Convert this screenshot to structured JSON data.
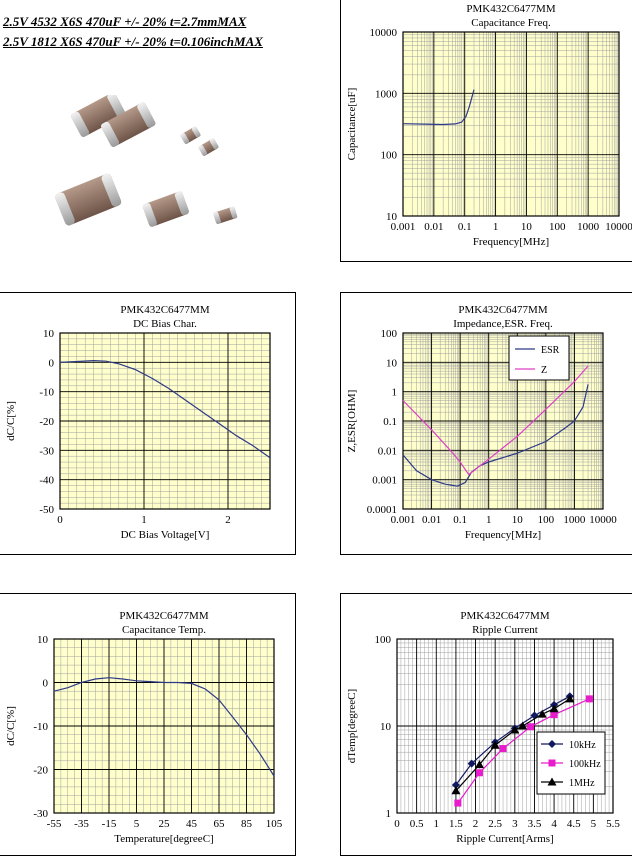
{
  "header": {
    "line1": "2.5V 4532 X6S 470uF +/- 20% t=2.7mmMAX",
    "line2": "2.5V 1812 X6S 470uF +/- 20% t=0.106inchMAX"
  },
  "chart_data": [
    {
      "id": "cap-freq",
      "type": "line",
      "title": "PMK432C6477MM",
      "subtitle": "Capacitance Freq.",
      "xlabel": "Frequency[MHz]",
      "ylabel": "Capacitance[uF]",
      "xscale": "log",
      "yscale": "log",
      "xlim": [
        0.001,
        10000
      ],
      "ylim": [
        10,
        10000
      ],
      "xticks": [
        "0.001",
        "0.01",
        "0.1",
        "1",
        "10",
        "100",
        "1000",
        "10000"
      ],
      "yticks": [
        "10",
        "100",
        "1000",
        "10000"
      ],
      "grid": true,
      "series": [
        {
          "color": "#2e3a87",
          "points": [
            [
              0.001,
              320
            ],
            [
              0.005,
              315
            ],
            [
              0.02,
              310
            ],
            [
              0.05,
              318
            ],
            [
              0.08,
              340
            ],
            [
              0.11,
              420
            ],
            [
              0.14,
              600
            ],
            [
              0.17,
              850
            ],
            [
              0.2,
              1150
            ]
          ]
        }
      ]
    },
    {
      "id": "dc-bias",
      "type": "line",
      "title": "PMK432C6477MM",
      "subtitle": "DC Bias Char.",
      "xlabel": "DC Bias Voltage[V]",
      "ylabel": "dC/C[%]",
      "xscale": "linear",
      "yscale": "linear",
      "xlim": [
        0,
        2.5
      ],
      "ylim": [
        -50,
        10
      ],
      "xticks": [
        "0",
        "1",
        "2"
      ],
      "yticks": [
        "10",
        "0",
        "-10",
        "-20",
        "-30",
        "-40",
        "-50"
      ],
      "grid": true,
      "series": [
        {
          "color": "#2e3a87",
          "points": [
            [
              0,
              0
            ],
            [
              0.2,
              0.3
            ],
            [
              0.4,
              0.6
            ],
            [
              0.55,
              0.4
            ],
            [
              0.7,
              -0.5
            ],
            [
              0.9,
              -2.5
            ],
            [
              1.1,
              -5.5
            ],
            [
              1.3,
              -9
            ],
            [
              1.5,
              -13
            ],
            [
              1.7,
              -17
            ],
            [
              1.9,
              -21
            ],
            [
              2.1,
              -25
            ],
            [
              2.3,
              -28.5
            ],
            [
              2.5,
              -32.5
            ]
          ]
        }
      ]
    },
    {
      "id": "impedance",
      "type": "line",
      "title": "PMK432C6477MM",
      "subtitle": "Impedance,ESR. Freq.",
      "xlabel": "Frequency[MHz]",
      "ylabel": "Z,ESR[OHM]",
      "xscale": "log",
      "yscale": "log",
      "xlim": [
        0.001,
        10000
      ],
      "ylim": [
        0.0001,
        100
      ],
      "xticks": [
        "0.001",
        "0.01",
        "0.1",
        "1",
        "10",
        "100",
        "1000",
        "10000"
      ],
      "yticks": [
        "100",
        "10",
        "1",
        "0.1",
        "0.01",
        "0.001",
        "0.0001"
      ],
      "grid": true,
      "legend_position": "top-right",
      "series": [
        {
          "name": "ESR",
          "color": "#2e3a87",
          "points": [
            [
              0.001,
              0.007
            ],
            [
              0.003,
              0.002
            ],
            [
              0.01,
              0.001
            ],
            [
              0.03,
              0.0007
            ],
            [
              0.08,
              0.0006
            ],
            [
              0.15,
              0.0008
            ],
            [
              0.25,
              0.0018
            ],
            [
              0.5,
              0.003
            ],
            [
              1,
              0.004
            ],
            [
              10,
              0.008
            ],
            [
              100,
              0.02
            ],
            [
              500,
              0.06
            ],
            [
              1000,
              0.1
            ],
            [
              2000,
              0.3
            ],
            [
              3000,
              1.8
            ]
          ]
        },
        {
          "name": "Z",
          "color": "#e040c8",
          "points": [
            [
              0.001,
              0.5
            ],
            [
              0.01,
              0.05
            ],
            [
              0.05,
              0.009
            ],
            [
              0.1,
              0.004
            ],
            [
              0.2,
              0.0015
            ],
            [
              0.3,
              0.002
            ],
            [
              0.5,
              0.003
            ],
            [
              1,
              0.005
            ],
            [
              10,
              0.03
            ],
            [
              100,
              0.25
            ],
            [
              1000,
              2.2
            ],
            [
              3000,
              7.5
            ]
          ]
        }
      ]
    },
    {
      "id": "cap-temp",
      "type": "line",
      "title": "PMK432C6477MM",
      "subtitle": "Capacitance Temp.",
      "xlabel": "Temperature[degreeC]",
      "ylabel": "dC/C[%]",
      "xscale": "linear",
      "yscale": "linear",
      "xlim": [
        -55,
        105
      ],
      "ylim": [
        -30,
        10
      ],
      "xticks": [
        "-55",
        "-35",
        "-15",
        "5",
        "25",
        "45",
        "65",
        "85",
        "105"
      ],
      "yticks": [
        "10",
        "0",
        "-10",
        "-20",
        "-30"
      ],
      "grid": true,
      "series": [
        {
          "color": "#2e3a87",
          "points": [
            [
              -55,
              -2
            ],
            [
              -45,
              -1.2
            ],
            [
              -35,
              0
            ],
            [
              -25,
              0.8
            ],
            [
              -15,
              1.1
            ],
            [
              -5,
              0.8
            ],
            [
              5,
              0.4
            ],
            [
              15,
              0.2
            ],
            [
              25,
              0
            ],
            [
              35,
              0
            ],
            [
              45,
              -0.2
            ],
            [
              55,
              -1.5
            ],
            [
              65,
              -4
            ],
            [
              75,
              -8
            ],
            [
              85,
              -12
            ],
            [
              95,
              -16.5
            ],
            [
              105,
              -21.5
            ]
          ]
        }
      ]
    },
    {
      "id": "ripple",
      "type": "line",
      "title": "PMK432C6477MM",
      "subtitle": "Ripple Current",
      "xlabel": "Ripple Current[Arms]",
      "ylabel": "dTemp[degreeC]",
      "xscale": "linear",
      "yscale": "log",
      "xlim": [
        0,
        5.5
      ],
      "ylim": [
        1,
        100
      ],
      "xticks": [
        "0",
        "0.5",
        "1",
        "1.5",
        "2",
        "2.5",
        "3",
        "3.5",
        "4",
        "4.5",
        "5",
        "5.5"
      ],
      "yticks": [
        "100",
        "10",
        "1"
      ],
      "grid": true,
      "legend_position": "bottom-right",
      "series": [
        {
          "name": "10kHz",
          "color": "#101860",
          "marker": "diamond",
          "points": [
            [
              1.5,
              2.1
            ],
            [
              1.9,
              3.7
            ],
            [
              2.5,
              6.5
            ],
            [
              3,
              9.4
            ],
            [
              3.5,
              13.2
            ],
            [
              4,
              17.5
            ],
            [
              4.4,
              22
            ]
          ]
        },
        {
          "name": "100kHz",
          "color": "#e81ccc",
          "marker": "square",
          "points": [
            [
              1.55,
              1.3
            ],
            [
              2.1,
              2.9
            ],
            [
              2.7,
              5.5
            ],
            [
              3.4,
              9.8
            ],
            [
              4,
              13.5
            ],
            [
              4.9,
              20.5
            ]
          ]
        },
        {
          "name": "1MHz",
          "color": "#000000",
          "marker": "triangle",
          "points": [
            [
              1.5,
              1.8
            ],
            [
              2.1,
              3.6
            ],
            [
              2.5,
              6
            ],
            [
              3,
              9
            ],
            [
              3.2,
              10
            ],
            [
              3.7,
              13.7
            ],
            [
              4,
              15.8
            ],
            [
              4.4,
              20.5
            ]
          ]
        }
      ]
    }
  ]
}
